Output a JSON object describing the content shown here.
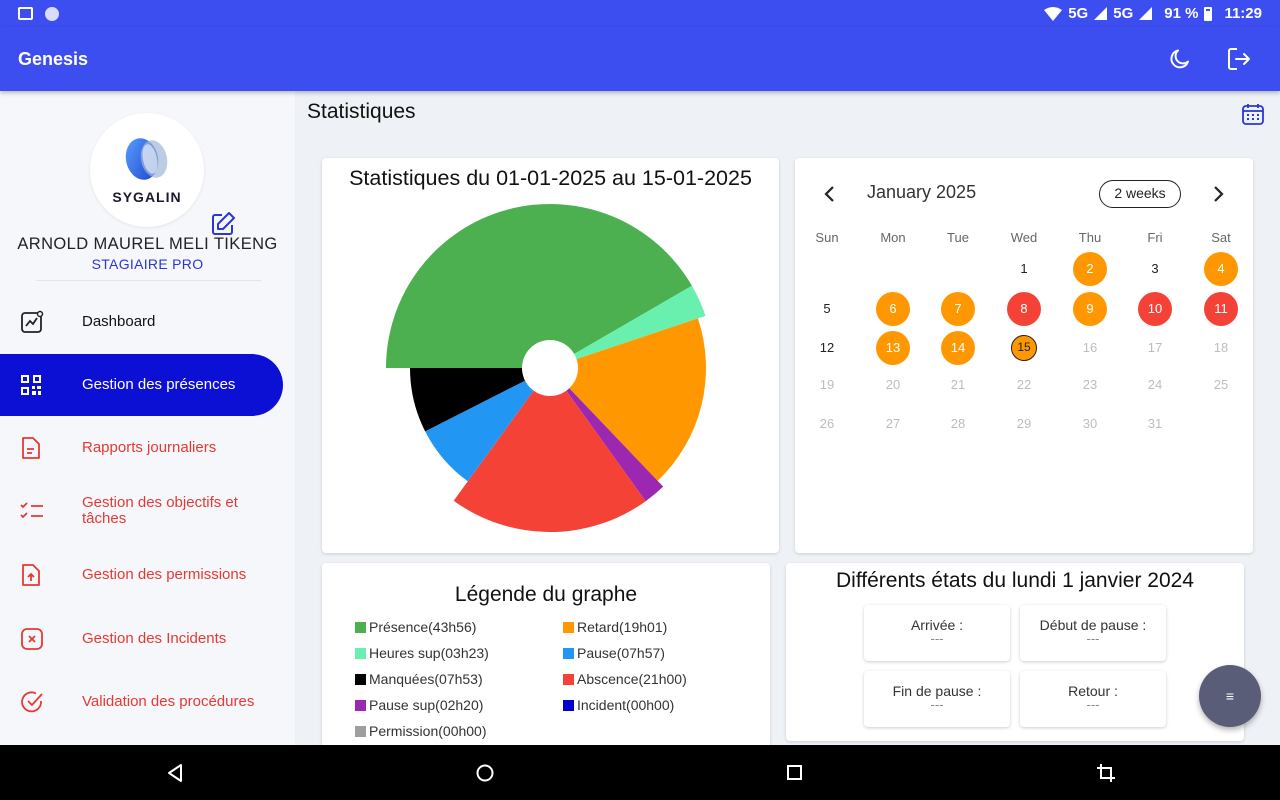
{
  "status_bar": {
    "network_1": "5G",
    "network_2": "5G",
    "battery": "91 %",
    "time": "11:29"
  },
  "app_bar": {
    "title": "Genesis",
    "actions": [
      "moon-icon",
      "logout-icon"
    ]
  },
  "profile": {
    "logo_text": "SYGALIN",
    "name": "ARNOLD MAUREL MELI TIKENG",
    "role": "STAGIAIRE PRO"
  },
  "sidebar": {
    "items": [
      {
        "label": "Dashboard",
        "icon": "chart-line-icon",
        "state": "normal"
      },
      {
        "label": "Gestion des présences",
        "icon": "qr-code-icon",
        "state": "active"
      },
      {
        "label": "Rapports journaliers",
        "icon": "document-icon",
        "state": "normal"
      },
      {
        "label": "Gestion des objectifs et tâches",
        "icon": "checklist-icon",
        "state": "normal"
      },
      {
        "label": "Gestion des permissions",
        "icon": "upload-file-icon",
        "state": "normal"
      },
      {
        "label": "Gestion des Incidents",
        "icon": "close-square-icon",
        "state": "normal"
      },
      {
        "label": "Validation des procédures",
        "icon": "check-circle-icon",
        "state": "normal"
      }
    ]
  },
  "main": {
    "title": "Statistiques"
  },
  "chart_data": {
    "type": "pie",
    "title": "Statistiques du 01-01-2025 au 15-01-2025",
    "donut_hole": true,
    "series": [
      {
        "name": "Présence",
        "label": "43h56",
        "minutes": 2636,
        "color": "#4caf50"
      },
      {
        "name": "Heures sup",
        "label": "03h23",
        "minutes": 203,
        "color": "#69f0ae"
      },
      {
        "name": "Retard",
        "label": "19h01",
        "minutes": 1141,
        "color": "#ff9800"
      },
      {
        "name": "Pause sup",
        "label": "02h20",
        "minutes": 140,
        "color": "#9c27b0"
      },
      {
        "name": "Abscence",
        "label": "21h00",
        "minutes": 1260,
        "color": "#f44336"
      },
      {
        "name": "Pause",
        "label": "07h57",
        "minutes": 477,
        "color": "#2196f3"
      },
      {
        "name": "Manquées",
        "label": "07h53",
        "minutes": 473,
        "color": "#000000"
      }
    ]
  },
  "legend": {
    "title": "Légende du graphe",
    "items": [
      {
        "text": "Présence(43h56)",
        "color": "#4caf50"
      },
      {
        "text": "Retard(19h01)",
        "color": "#ff9800"
      },
      {
        "text": "Heures sup(03h23)",
        "color": "#69f0ae"
      },
      {
        "text": "Pause(07h57)",
        "color": "#2196f3"
      },
      {
        "text": "Manquées(07h53)",
        "color": "#000000"
      },
      {
        "text": "Abscence(21h00)",
        "color": "#f44336"
      },
      {
        "text": "Pause sup(02h20)",
        "color": "#9c27b0"
      },
      {
        "text": "Incident(00h00)",
        "color": "#0000cc"
      },
      {
        "text": "Permission(00h00)",
        "color": "#9e9e9e"
      }
    ]
  },
  "calendar": {
    "month_label": "January 2025",
    "range_label": "2 weeks",
    "weekdays": [
      "Sun",
      "Mon",
      "Tue",
      "Wed",
      "Thu",
      "Fri",
      "Sat"
    ],
    "weeks": [
      [
        null,
        null,
        null,
        {
          "d": "1",
          "s": "cur"
        },
        {
          "d": "2",
          "s": "orange"
        },
        {
          "d": "3",
          "s": "cur"
        },
        {
          "d": "4",
          "s": "orange"
        }
      ],
      [
        {
          "d": "5",
          "s": "cur"
        },
        {
          "d": "6",
          "s": "orange"
        },
        {
          "d": "7",
          "s": "orange"
        },
        {
          "d": "8",
          "s": "red"
        },
        {
          "d": "9",
          "s": "orange"
        },
        {
          "d": "10",
          "s": "red"
        },
        {
          "d": "11",
          "s": "red"
        }
      ],
      [
        {
          "d": "12",
          "s": "cur"
        },
        {
          "d": "13",
          "s": "orange"
        },
        {
          "d": "14",
          "s": "orange"
        },
        {
          "d": "15",
          "s": "today"
        },
        {
          "d": "16",
          "s": "next"
        },
        {
          "d": "17",
          "s": "next"
        },
        {
          "d": "18",
          "s": "next"
        }
      ],
      [
        {
          "d": "19",
          "s": "next"
        },
        {
          "d": "20",
          "s": "next"
        },
        {
          "d": "21",
          "s": "next"
        },
        {
          "d": "22",
          "s": "next"
        },
        {
          "d": "23",
          "s": "next"
        },
        {
          "d": "24",
          "s": "next"
        },
        {
          "d": "25",
          "s": "next"
        }
      ],
      [
        {
          "d": "26",
          "s": "next"
        },
        {
          "d": "27",
          "s": "next"
        },
        {
          "d": "28",
          "s": "next"
        },
        {
          "d": "29",
          "s": "next"
        },
        {
          "d": "30",
          "s": "next"
        },
        {
          "d": "31",
          "s": "next"
        },
        null
      ]
    ]
  },
  "states": {
    "title": "Différents états du lundi 1 janvier 2024",
    "items": [
      {
        "label": "Arrivée :",
        "value": "---"
      },
      {
        "label": "Début de pause :",
        "value": "---"
      },
      {
        "label": "Fin de pause :",
        "value": "---"
      },
      {
        "label": "Retour :",
        "value": "---"
      }
    ]
  },
  "fab": {
    "label": "≡"
  }
}
